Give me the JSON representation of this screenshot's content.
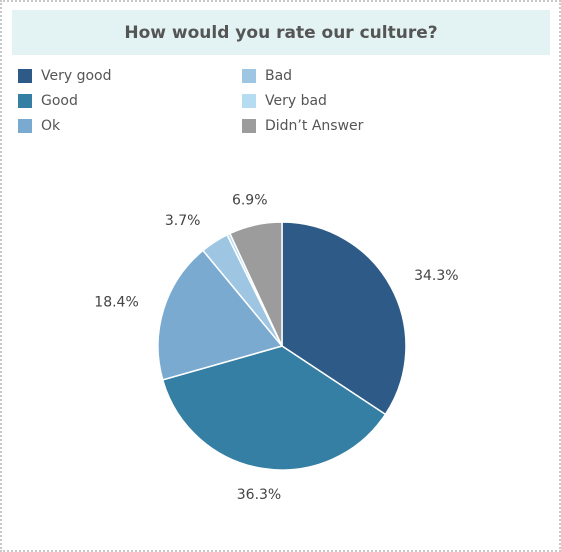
{
  "chart_data": {
    "type": "pie",
    "title": "How would you rate our culture?",
    "legend_position": "top",
    "slices": [
      {
        "name": "Very good",
        "value": 34.3,
        "label": "34.3%",
        "color": "#2d5a87"
      },
      {
        "name": "Good",
        "value": 36.3,
        "label": "36.3%",
        "color": "#347fa3"
      },
      {
        "name": "Ok",
        "value": 18.4,
        "label": "18.4%",
        "color": "#7aaad0"
      },
      {
        "name": "Bad",
        "value": 3.7,
        "label": "3.7%",
        "color": "#9ec6e3"
      },
      {
        "name": "Very bad",
        "value": 0.4,
        "label": "",
        "color": "#b5dcf0"
      },
      {
        "name": "Didn’t Answer",
        "value": 6.9,
        "label": "6.9%",
        "color": "#9c9c9c"
      }
    ]
  }
}
